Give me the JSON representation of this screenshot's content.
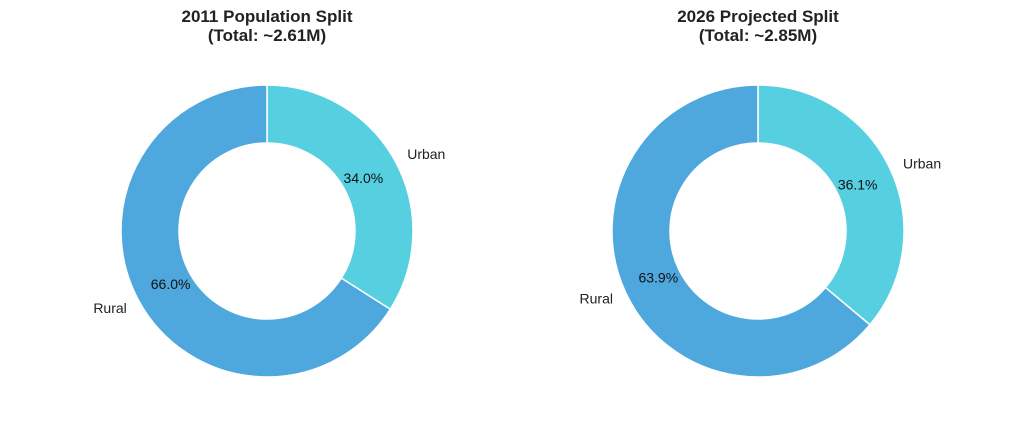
{
  "chart_data": [
    {
      "type": "pie",
      "donut": true,
      "title_lines": [
        "2011 Population Split",
        "(Total: ~2.61M)"
      ],
      "slices": [
        {
          "label": "Urban",
          "value": 34.0,
          "pct_label": "34.0%",
          "color": "#56cfe1"
        },
        {
          "label": "Rural",
          "value": 66.0,
          "pct_label": "66.0%",
          "color": "#4ea8de"
        }
      ]
    },
    {
      "type": "pie",
      "donut": true,
      "title_lines": [
        "2026 Projected Split",
        "(Total: ~2.85M)"
      ],
      "slices": [
        {
          "label": "Urban",
          "value": 36.1,
          "pct_label": "36.1%",
          "color": "#56cfe1"
        },
        {
          "label": "Rural",
          "value": 63.9,
          "pct_label": "63.9%",
          "color": "#4ea8de"
        }
      ]
    }
  ]
}
